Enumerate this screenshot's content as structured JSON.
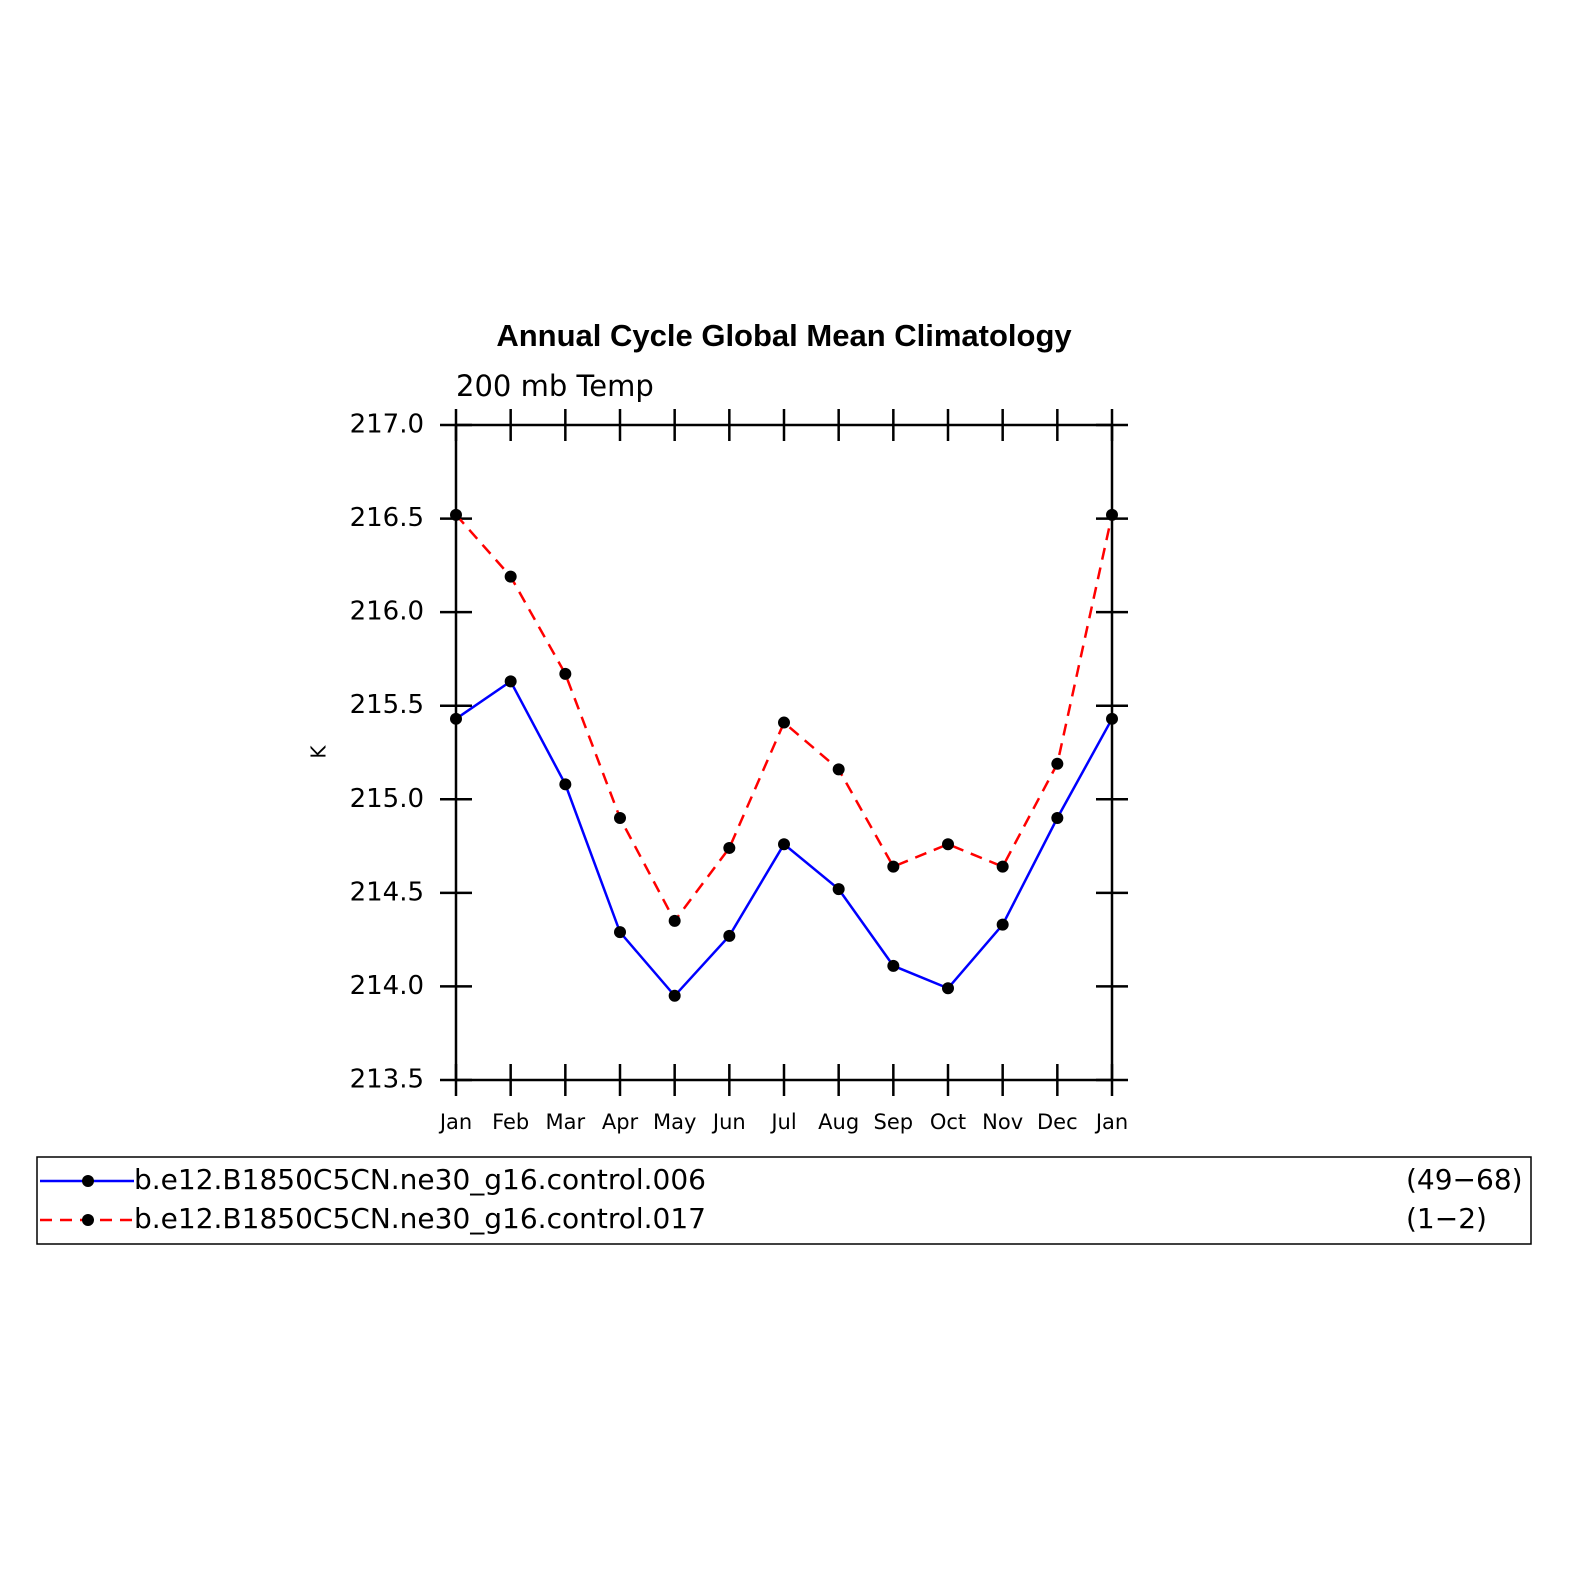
{
  "chart_data": {
    "type": "line",
    "title": "Annual Cycle Global Mean Climatology",
    "subtitle": "200 mb Temp",
    "ylabel": "K",
    "categories": [
      "Jan",
      "Feb",
      "Mar",
      "Apr",
      "May",
      "Jun",
      "Jul",
      "Aug",
      "Sep",
      "Oct",
      "Nov",
      "Dec",
      "Jan"
    ],
    "series": [
      {
        "name": "b.e12.B1850C5CN.ne30_g16.control.006",
        "period": "(49−68)",
        "color": "#0000ff",
        "dash": "solid",
        "marker_color": "#000000",
        "values": [
          215.43,
          215.63,
          215.08,
          214.29,
          213.95,
          214.27,
          214.76,
          214.52,
          214.11,
          213.99,
          214.33,
          214.9,
          215.43
        ]
      },
      {
        "name": "b.e12.B1850C5CN.ne30_g16.control.017",
        "period": "(1−2)",
        "color": "#ff0000",
        "dash": "dashed",
        "marker_color": "#000000",
        "values": [
          216.52,
          216.19,
          215.67,
          214.9,
          214.35,
          214.74,
          215.41,
          215.16,
          214.64,
          214.76,
          214.64,
          215.19,
          216.52
        ]
      }
    ],
    "ylim": [
      213.5,
      217.0
    ],
    "yticks": [
      {
        "value": 213.5,
        "label": "213.5"
      },
      {
        "value": 214,
        "label": "214.0"
      },
      214.5,
      {
        "value": 215,
        "label": "215.0"
      },
      215.5,
      {
        "value": 216,
        "label": "216.0"
      },
      216.5,
      {
        "value": 217,
        "label": "217.0"
      }
    ],
    "grid": false
  }
}
